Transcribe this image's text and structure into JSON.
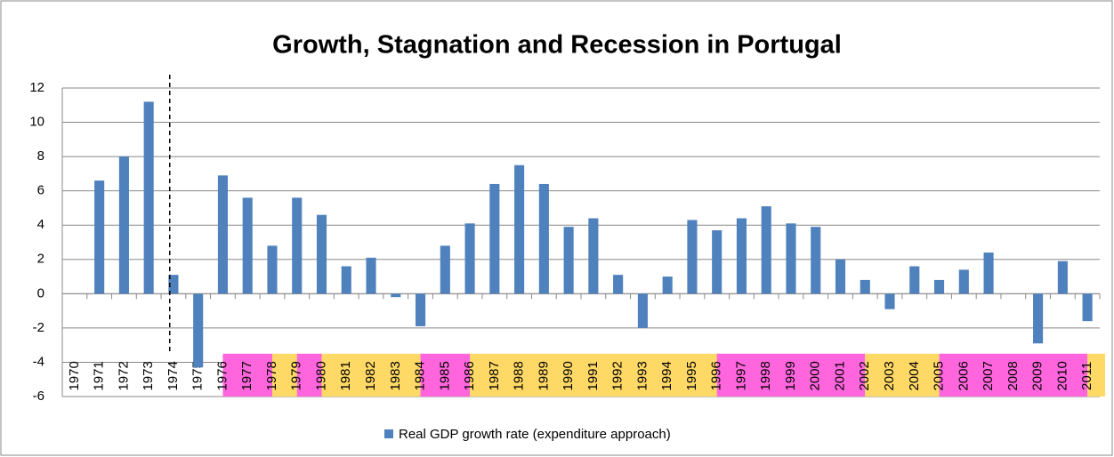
{
  "chart_data": {
    "type": "bar",
    "title": "Growth, Stagnation and Recession in Portugal",
    "categories": [
      "1970",
      "1971",
      "1972",
      "1973",
      "1974",
      "1975",
      "1976",
      "1977",
      "1978",
      "1979",
      "1980",
      "1981",
      "1982",
      "1983",
      "1984",
      "1985",
      "1986",
      "1987",
      "1988",
      "1989",
      "1990",
      "1991",
      "1992",
      "1993",
      "1994",
      "1995",
      "1996",
      "1997",
      "1998",
      "1999",
      "2000",
      "2001",
      "2002",
      "2003",
      "2004",
      "2005",
      "2006",
      "2007",
      "2008",
      "2009",
      "2010",
      "2011"
    ],
    "series": [
      {
        "name": "Real GDP growth rate (expenditure approach)",
        "color": "#4f81bd",
        "values": [
          null,
          6.6,
          8.0,
          11.2,
          1.1,
          -4.3,
          6.9,
          5.6,
          2.8,
          5.6,
          4.6,
          1.6,
          2.1,
          -0.2,
          -1.9,
          2.8,
          4.1,
          6.4,
          7.5,
          6.4,
          3.9,
          4.4,
          1.1,
          -2.0,
          1.0,
          4.3,
          3.7,
          4.4,
          5.1,
          4.1,
          3.9,
          2.0,
          0.8,
          -0.9,
          1.6,
          0.8,
          1.4,
          2.4,
          0.0,
          -2.9,
          1.9,
          -1.6
        ]
      }
    ],
    "ylim": [
      -6,
      12
    ],
    "yticks": [
      -6,
      -4,
      -2,
      0,
      2,
      4,
      6,
      8,
      10,
      12
    ],
    "grid": true,
    "legend": "bottom",
    "band_range": [
      -6,
      -3.5
    ],
    "bands": [
      {
        "from": "1976",
        "to": "1978",
        "color": "#ff66dd"
      },
      {
        "from": "1978",
        "to": "1979",
        "color": "#ffd966"
      },
      {
        "from": "1979",
        "to": "1980",
        "color": "#ff66dd"
      },
      {
        "from": "1980",
        "to": "1984",
        "color": "#ffd966"
      },
      {
        "from": "1984",
        "to": "1986",
        "color": "#ff66dd"
      },
      {
        "from": "1986",
        "to": "1996",
        "color": "#ffd966"
      },
      {
        "from": "1996",
        "to": "2002",
        "color": "#ff66dd"
      },
      {
        "from": "2002",
        "to": "2005",
        "color": "#ffd966"
      },
      {
        "from": "2005",
        "to": "2011",
        "color": "#ff66dd"
      },
      {
        "from": "2011",
        "color": "#ffd966"
      }
    ],
    "marker_line": "1974"
  }
}
